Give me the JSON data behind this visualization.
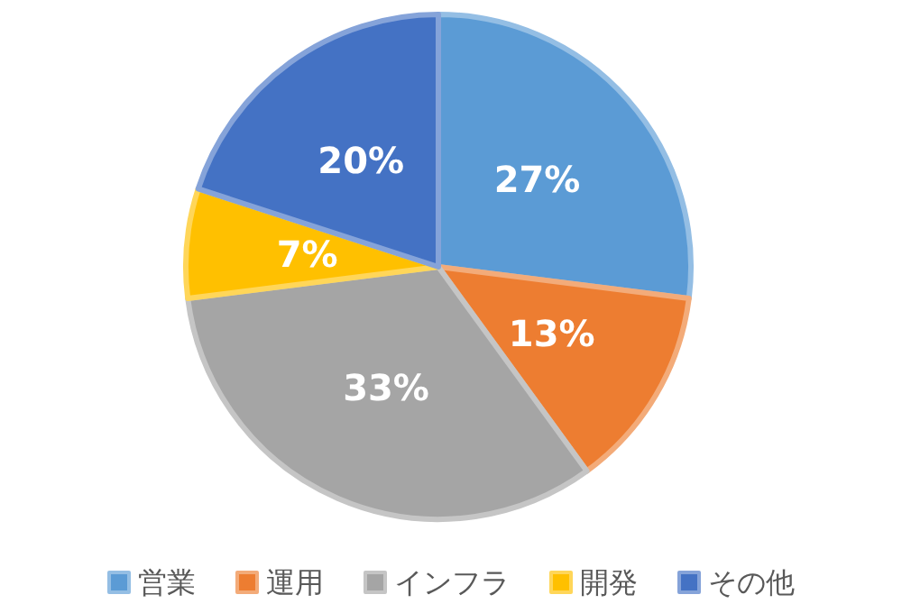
{
  "chart_data": {
    "type": "pie",
    "categories": [
      "営業",
      "運用",
      "インフラ",
      "開発",
      "その他"
    ],
    "values": [
      27,
      13,
      33,
      7,
      20
    ],
    "colors": [
      "#5b9bd5",
      "#ed7d31",
      "#a5a5a5",
      "#ffc000",
      "#4472c4"
    ],
    "value_labels": [
      "27%",
      "13%",
      "33%",
      "7%",
      "20%"
    ],
    "legend": "bottom"
  }
}
